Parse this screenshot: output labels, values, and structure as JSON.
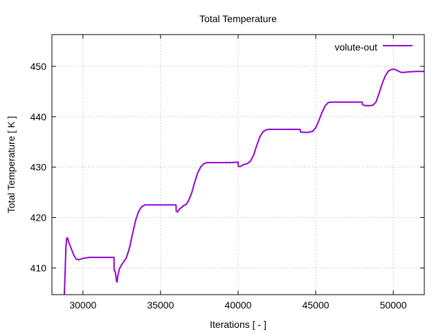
{
  "chart_data": {
    "type": "line",
    "title": "Total Temperature",
    "xlabel": "Iterations [ - ]",
    "ylabel": "Total Temperature [ K ]",
    "xlim": [
      28000,
      52000
    ],
    "ylim": [
      404.7,
      456.3
    ],
    "xticks": [
      30000,
      35000,
      40000,
      45000,
      50000
    ],
    "yticks": [
      410,
      420,
      430,
      440,
      450
    ],
    "grid": true,
    "legend_position": "top-right",
    "series": [
      {
        "name": "volute-out",
        "color": "#9400d3",
        "points": [
          [
            28800,
            404.7
          ],
          [
            28850,
            409.0
          ],
          [
            28900,
            414.0
          ],
          [
            28950,
            415.8
          ],
          [
            29000,
            416.0
          ],
          [
            29100,
            415.0
          ],
          [
            29250,
            413.8
          ],
          [
            29400,
            412.6
          ],
          [
            29550,
            411.8
          ],
          [
            29700,
            411.6
          ],
          [
            30000,
            411.9
          ],
          [
            30400,
            412.1
          ],
          [
            31000,
            412.1
          ],
          [
            31600,
            412.1
          ],
          [
            32000,
            412.1
          ],
          [
            32010,
            409.5
          ],
          [
            32080,
            409.3
          ],
          [
            32120,
            408.5
          ],
          [
            32160,
            407.4
          ],
          [
            32200,
            407.2
          ],
          [
            32250,
            408.5
          ],
          [
            32350,
            409.8
          ],
          [
            32450,
            410.4
          ],
          [
            32600,
            411.1
          ],
          [
            32800,
            412.0
          ],
          [
            33000,
            414.0
          ],
          [
            33200,
            416.8
          ],
          [
            33400,
            419.5
          ],
          [
            33600,
            421.3
          ],
          [
            33800,
            422.2
          ],
          [
            34000,
            422.5
          ],
          [
            34500,
            422.5
          ],
          [
            35000,
            422.5
          ],
          [
            35500,
            422.5
          ],
          [
            36000,
            422.5
          ],
          [
            36010,
            421.3
          ],
          [
            36100,
            421.1
          ],
          [
            36200,
            421.6
          ],
          [
            36350,
            422.0
          ],
          [
            36500,
            422.4
          ],
          [
            36650,
            422.6
          ],
          [
            36800,
            423.3
          ],
          [
            37000,
            424.8
          ],
          [
            37200,
            427.0
          ],
          [
            37400,
            428.9
          ],
          [
            37600,
            430.1
          ],
          [
            37800,
            430.7
          ],
          [
            38000,
            430.9
          ],
          [
            38500,
            430.9
          ],
          [
            39000,
            430.9
          ],
          [
            39500,
            430.9
          ],
          [
            40000,
            431.0
          ],
          [
            40010,
            430.2
          ],
          [
            40100,
            430.1
          ],
          [
            40200,
            430.2
          ],
          [
            40350,
            430.5
          ],
          [
            40600,
            430.7
          ],
          [
            40800,
            431.2
          ],
          [
            41000,
            432.4
          ],
          [
            41200,
            434.3
          ],
          [
            41400,
            436.0
          ],
          [
            41600,
            437.0
          ],
          [
            41800,
            437.4
          ],
          [
            42000,
            437.5
          ],
          [
            42500,
            437.5
          ],
          [
            43000,
            437.5
          ],
          [
            43500,
            437.5
          ],
          [
            44000,
            437.5
          ],
          [
            44010,
            437.0
          ],
          [
            44200,
            436.9
          ],
          [
            44500,
            436.9
          ],
          [
            44800,
            437.1
          ],
          [
            45000,
            437.8
          ],
          [
            45200,
            439.2
          ],
          [
            45400,
            440.8
          ],
          [
            45600,
            442.1
          ],
          [
            45800,
            442.8
          ],
          [
            46000,
            442.9
          ],
          [
            46500,
            442.9
          ],
          [
            47000,
            442.9
          ],
          [
            47500,
            442.9
          ],
          [
            48000,
            442.9
          ],
          [
            48010,
            442.4
          ],
          [
            48200,
            442.2
          ],
          [
            48500,
            442.2
          ],
          [
            48700,
            442.3
          ],
          [
            48900,
            443.0
          ],
          [
            49100,
            444.8
          ],
          [
            49300,
            446.7
          ],
          [
            49500,
            448.2
          ],
          [
            49700,
            449.1
          ],
          [
            49900,
            449.4
          ],
          [
            50100,
            449.4
          ],
          [
            50300,
            449.1
          ],
          [
            50500,
            448.8
          ],
          [
            50700,
            448.8
          ],
          [
            51000,
            448.9
          ],
          [
            51500,
            449.0
          ],
          [
            52000,
            449.0
          ]
        ]
      }
    ]
  }
}
